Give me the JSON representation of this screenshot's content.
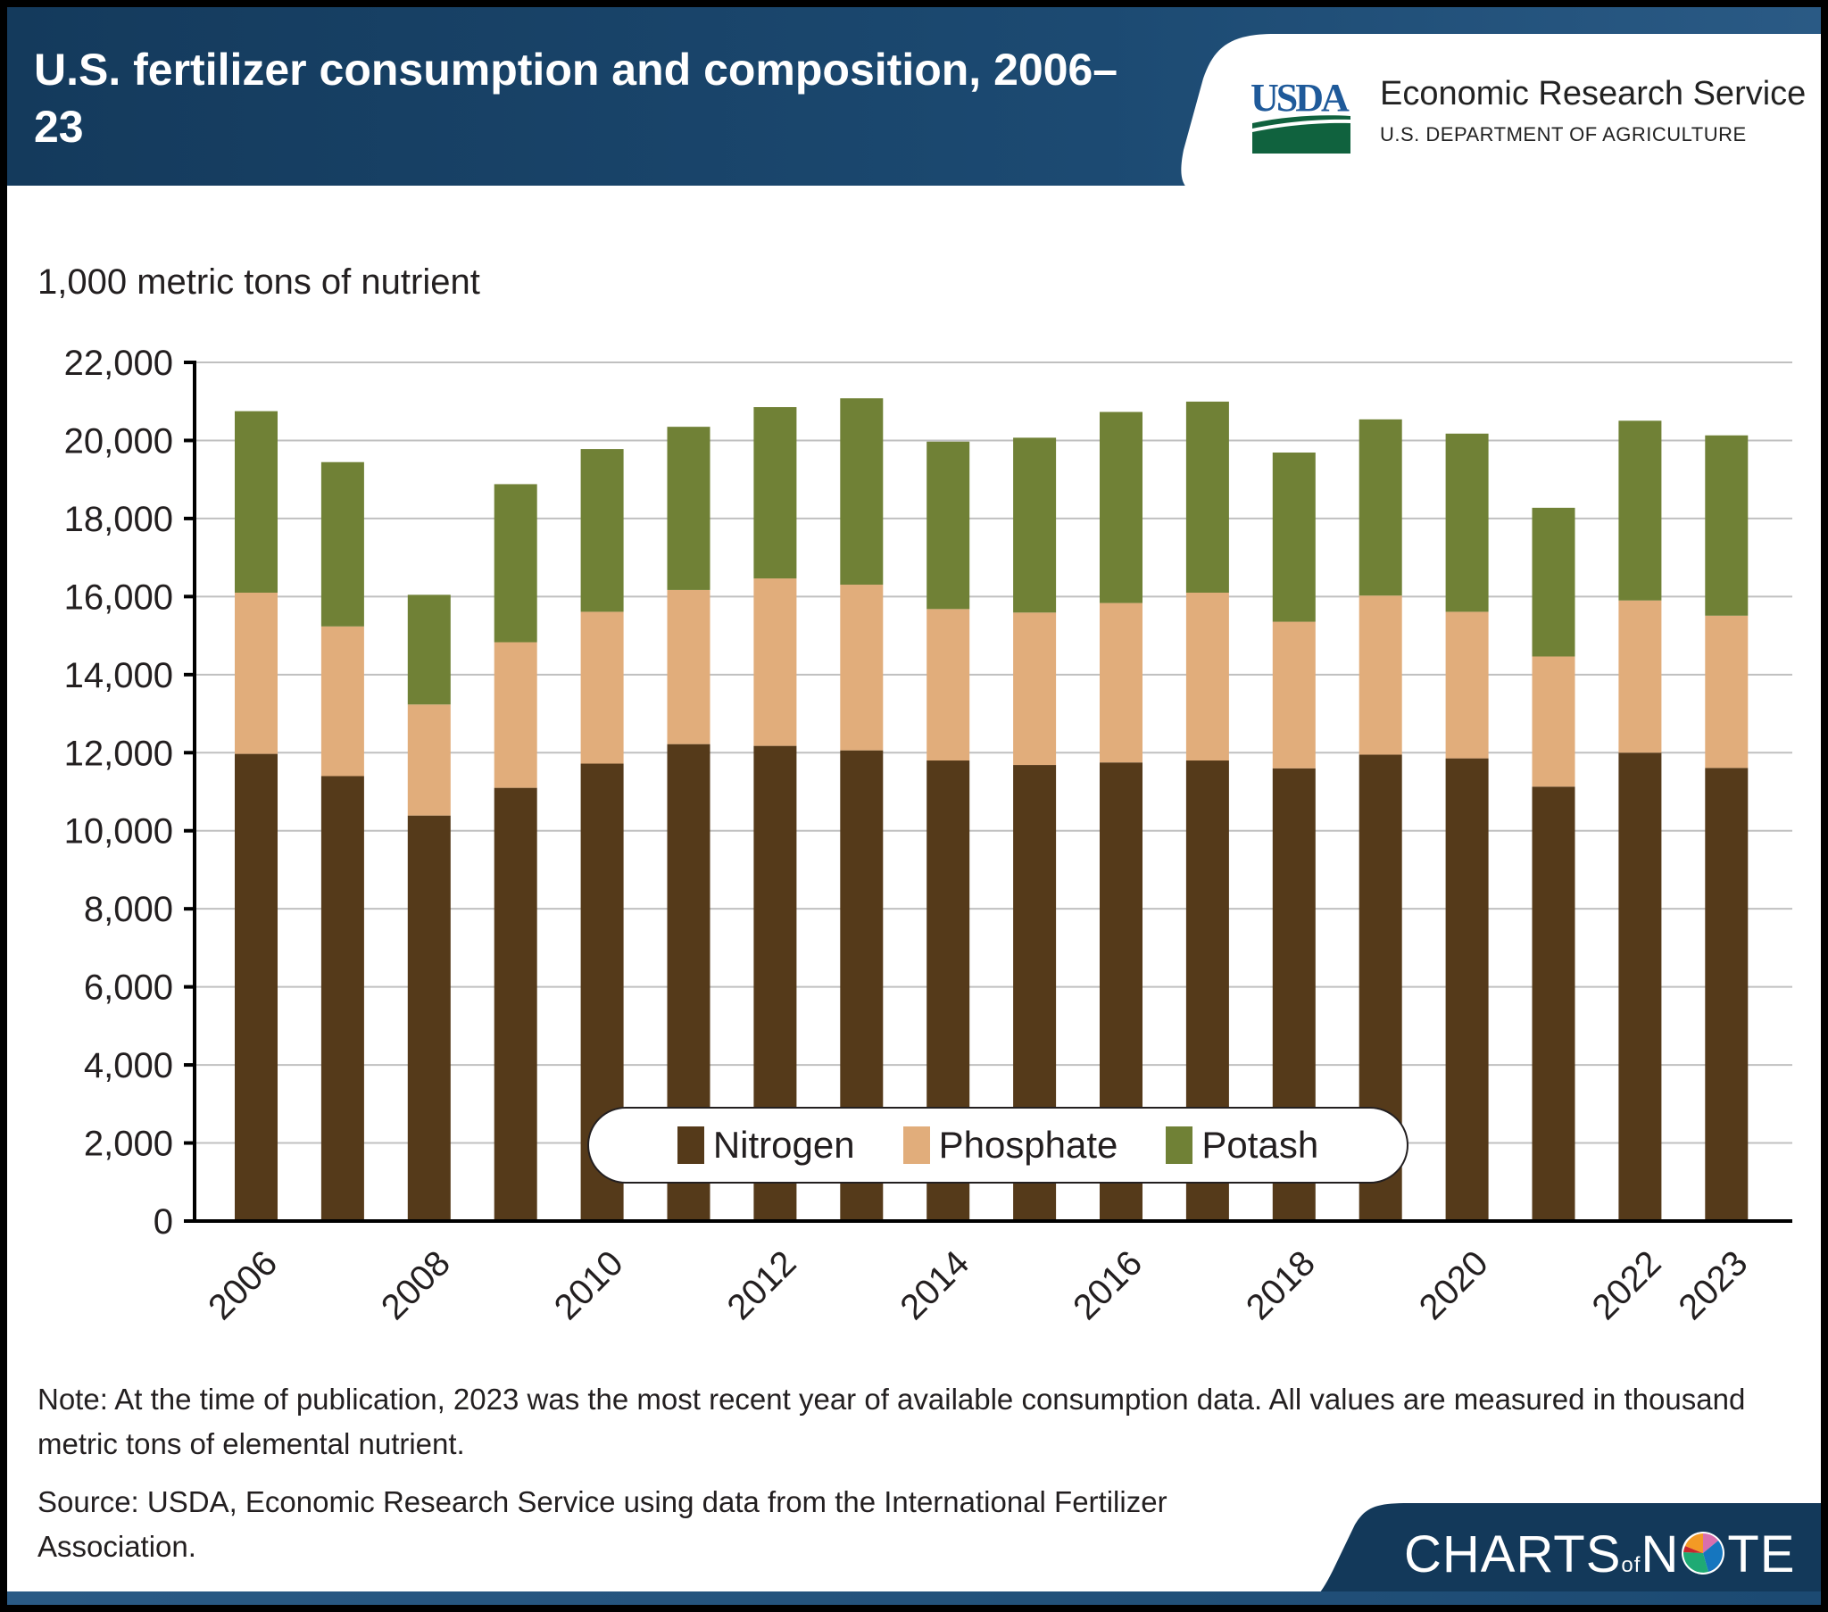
{
  "header": {
    "title": "U.S. fertilizer consumption and composition, 2006–23",
    "org_logo_text": "USDA",
    "org_name": "Economic Research Service",
    "org_parent": "U.S. DEPARTMENT OF AGRICULTURE"
  },
  "colors": {
    "nitrogen": "#553a1a",
    "phosphate": "#e1ad7b",
    "potash": "#708136",
    "header_bg": "#163e63",
    "gridline": "#c0c0c0",
    "axis": "#000000",
    "text": "#231f20"
  },
  "chart_data": {
    "type": "bar",
    "stacked": true,
    "title": "U.S. fertilizer consumption and composition, 2006–23",
    "xlabel": "",
    "ylabel": "1,000 metric tons of nutrient",
    "ylim": [
      0,
      22000
    ],
    "yticks": [
      0,
      2000,
      4000,
      6000,
      8000,
      10000,
      12000,
      14000,
      16000,
      18000,
      20000,
      22000
    ],
    "ytick_labels": [
      "0",
      "2,000",
      "4,000",
      "6,000",
      "8,000",
      "10,000",
      "12,000",
      "14,000",
      "16,000",
      "18,000",
      "20,000",
      "22,000"
    ],
    "categories": [
      "2006",
      "2007",
      "2008",
      "2009",
      "2010",
      "2011",
      "2012",
      "2013",
      "2014",
      "2015",
      "2016",
      "2017",
      "2018",
      "2019",
      "2020",
      "2021",
      "2022",
      "2023"
    ],
    "xtick_labels": [
      "2006",
      "",
      "2008",
      "",
      "2010",
      "",
      "2012",
      "",
      "2014",
      "",
      "2016",
      "",
      "2018",
      "",
      "2020",
      "",
      "2022",
      "2023"
    ],
    "grid": true,
    "legend_position": "bottom-center (inside plot)",
    "series": [
      {
        "name": "Nitrogen",
        "values": [
          11970,
          11400,
          10390,
          11100,
          11720,
          12220,
          12175,
          12060,
          11800,
          11685,
          11750,
          11800,
          11600,
          11950,
          11855,
          11130,
          12000,
          11610
        ]
      },
      {
        "name": "Phosphate",
        "values": [
          4130,
          3835,
          2845,
          3730,
          3890,
          3950,
          4290,
          4245,
          3880,
          3905,
          4085,
          4300,
          3755,
          4075,
          3755,
          3335,
          3900,
          3900
        ]
      },
      {
        "name": "Potash",
        "values": [
          4650,
          4210,
          2810,
          4050,
          4170,
          4180,
          4390,
          4775,
          4290,
          4480,
          4895,
          4895,
          4335,
          4515,
          4565,
          3810,
          4605,
          4620
        ]
      }
    ]
  },
  "legend": {
    "items": [
      {
        "label": "Nitrogen"
      },
      {
        "label": "Phosphate"
      },
      {
        "label": "Potash"
      }
    ]
  },
  "footer": {
    "note": "Note: At the time of publication, 2023 was the most recent year of available consumption data. All values are measured in thousand metric tons of elemental nutrient.",
    "source": "Source: USDA, Economic Research Service using data from the International Fertilizer Association.",
    "brand_main": "CHARTS",
    "brand_of": "of",
    "brand_end_left": "N",
    "brand_end_right": "TE"
  }
}
